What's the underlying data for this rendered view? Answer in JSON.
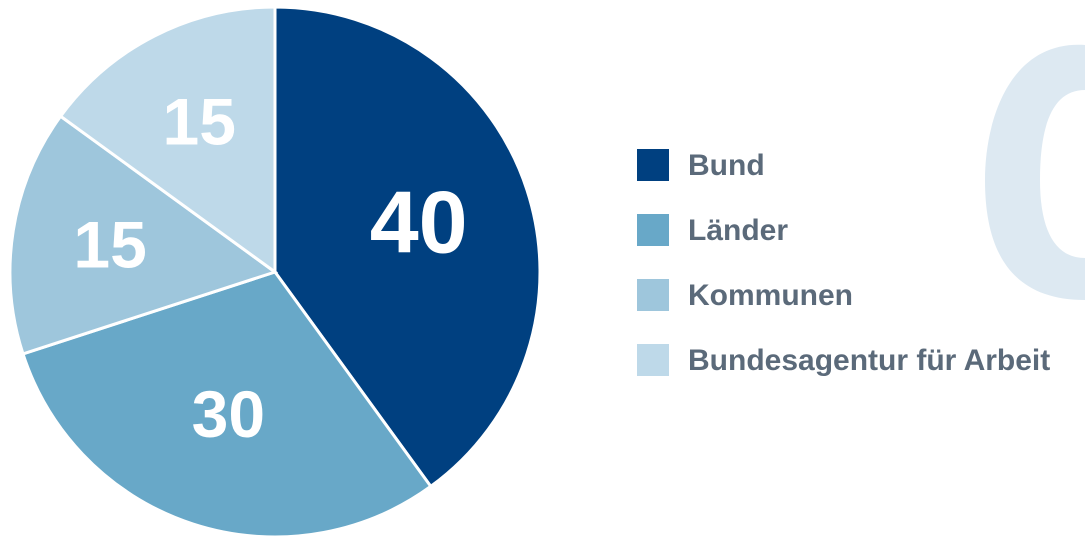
{
  "chart_data": {
    "type": "pie",
    "categories": [
      "Bund",
      "Länder",
      "Kommunen",
      "Bundesagentur für Arbeit"
    ],
    "values": [
      40,
      30,
      15,
      15
    ],
    "colors": [
      "#004080",
      "#68a8c8",
      "#9ec6dc",
      "#bed9e9"
    ],
    "legend": "right"
  }
}
